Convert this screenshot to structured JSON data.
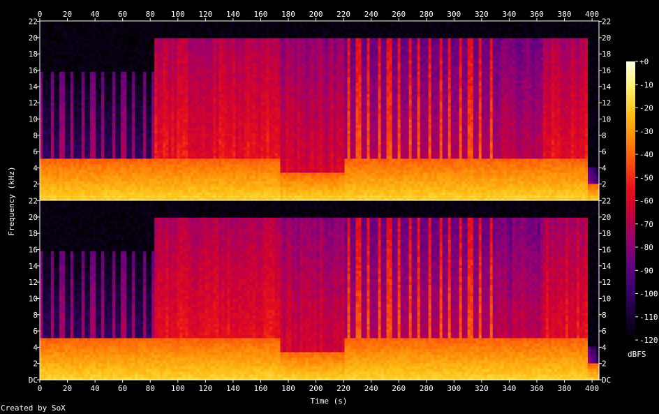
{
  "chart_data": {
    "type": "heatmap",
    "title": "",
    "xlabel": "Time (s)",
    "ylabel": "Frequency (kHz)",
    "x_ticks": [
      "0",
      "20",
      "40",
      "60",
      "80",
      "100",
      "120",
      "140",
      "160",
      "180",
      "200",
      "220",
      "240",
      "260",
      "280",
      "300",
      "320",
      "340",
      "360",
      "380",
      "400"
    ],
    "xlim": [
      0,
      405
    ],
    "y_ticks": [
      "DC",
      "2",
      "4",
      "6",
      "8",
      "10",
      "12",
      "14",
      "16",
      "18",
      "20",
      "22"
    ],
    "ylim": [
      0,
      22.05
    ],
    "channels": 2,
    "colorbar": {
      "label": "dBFS",
      "ticks": [
        "+0",
        "-10",
        "-20",
        "-30",
        "-40",
        "-50",
        "-60",
        "-70",
        "-80",
        "-90",
        "-100",
        "-110",
        "-120"
      ],
      "range": [
        -120,
        0
      ],
      "colors": [
        "#000000",
        "#1a0038",
        "#3a0070",
        "#640080",
        "#990070",
        "#c8003a",
        "#e8101a",
        "#fb4e0c",
        "#fd8d08",
        "#fdc419",
        "#fff070",
        "#ffffe8"
      ]
    },
    "segments": [
      {
        "t": [
          0,
          84
        ],
        "cutoff_khz": 16,
        "pattern": "pulsed",
        "bright_khz": 5,
        "level_db": -85
      },
      {
        "t": [
          84,
          175
        ],
        "cutoff_khz": 20,
        "pattern": "dense",
        "bright_khz": 5,
        "level_db": -55
      },
      {
        "t": [
          175,
          220
        ],
        "cutoff_khz": 20,
        "pattern": "dense",
        "bright_khz": 3.5,
        "level_db": -62
      },
      {
        "t": [
          220,
          330
        ],
        "cutoff_khz": 20,
        "pattern": "pulsed",
        "bright_khz": 5,
        "level_db": -55
      },
      {
        "t": [
          330,
          365
        ],
        "cutoff_khz": 20,
        "pattern": "dense",
        "bright_khz": 5,
        "level_db": -68
      },
      {
        "t": [
          365,
          397
        ],
        "cutoff_khz": 20,
        "pattern": "dense",
        "bright_khz": 5,
        "level_db": -56
      },
      {
        "t": [
          397,
          405
        ],
        "cutoff_khz": 4,
        "pattern": "fade",
        "bright_khz": 2,
        "level_db": -75
      }
    ]
  },
  "footer": {
    "credit": "Created by SoX"
  }
}
